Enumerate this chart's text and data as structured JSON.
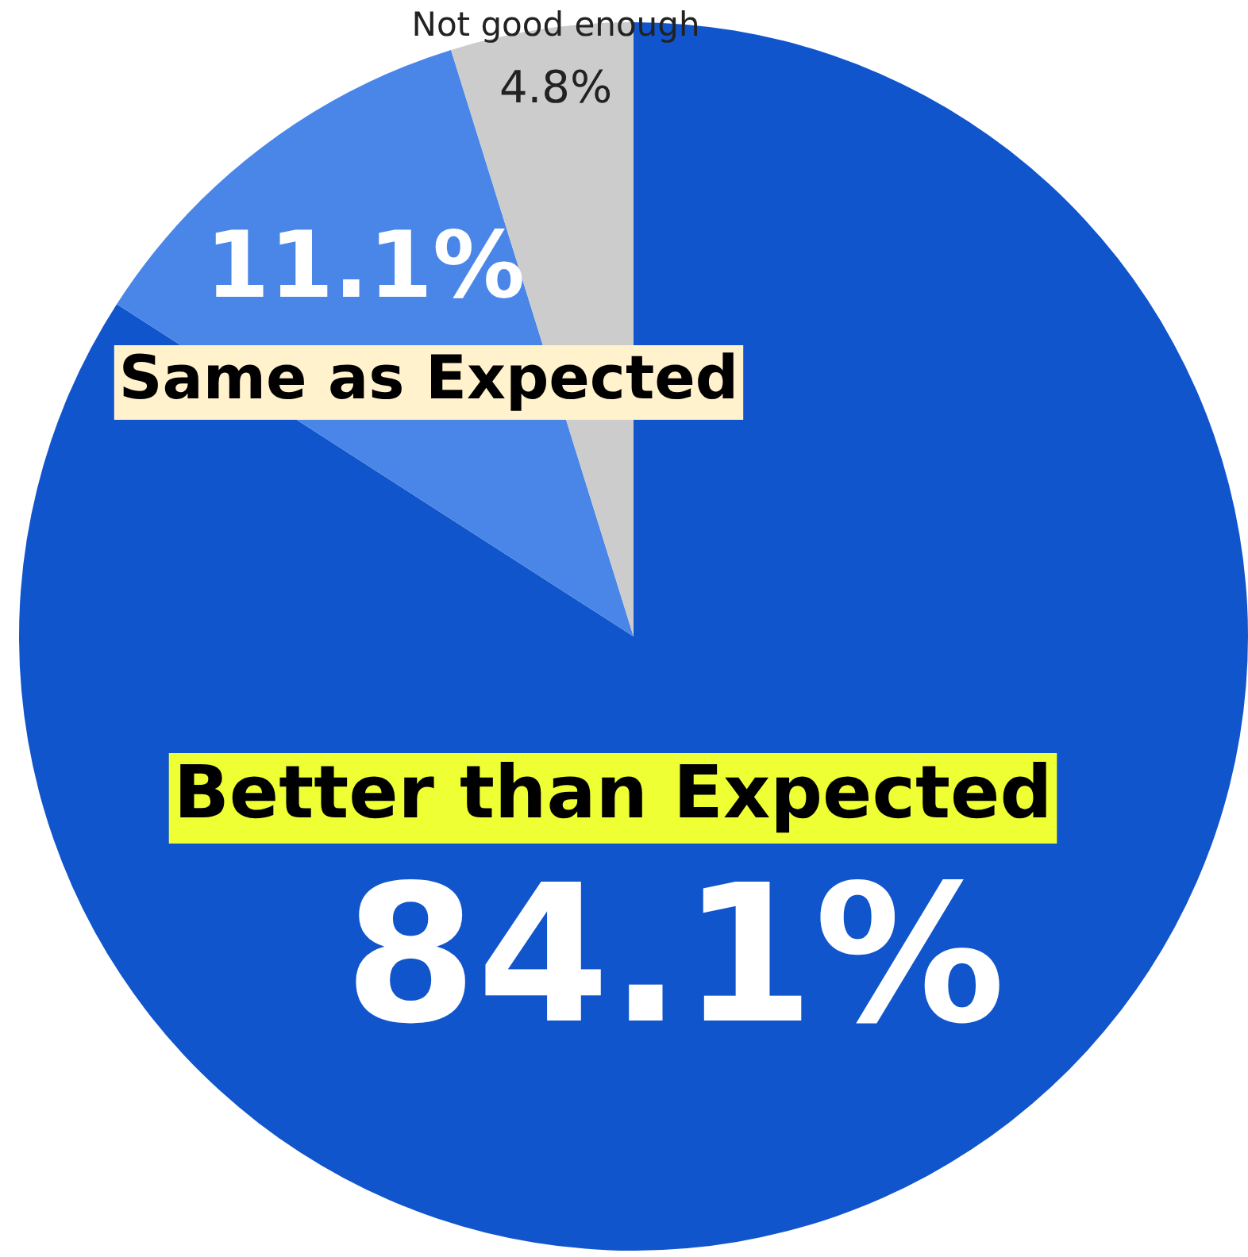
{
  "chart_data": {
    "type": "pie",
    "categories": [
      "Better than Expected",
      "Same as Expected",
      "Not good enough"
    ],
    "values": [
      84.1,
      11.1,
      4.8
    ],
    "colors": [
      "#1155cc",
      "#4a86e8",
      "#cccccc"
    ],
    "value_labels": [
      "84.1%",
      "11.1%",
      "4.8%"
    ],
    "legend": false
  }
}
